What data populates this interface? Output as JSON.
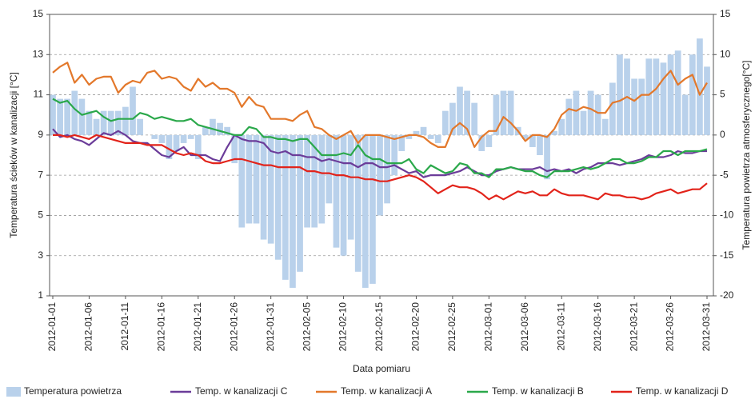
{
  "chart_data": {
    "type": "bar-line",
    "y_label": "Temperatura ścieków w kanalizacji [°C]",
    "y2_label": "Temperatura powietrza atmosferycznego[°C]",
    "x_label": "Data pomiaru",
    "categories": [
      "2012-01-01",
      null,
      null,
      null,
      null,
      "2012-01-06",
      null,
      null,
      null,
      null,
      "2012-01-11",
      null,
      null,
      null,
      null,
      "2012-01-16",
      null,
      null,
      null,
      null,
      "2012-01-21",
      null,
      null,
      null,
      null,
      "2012-01-26",
      null,
      null,
      null,
      null,
      "2012-01-31",
      null,
      null,
      null,
      null,
      "2012-02-05",
      null,
      null,
      null,
      null,
      "2012-02-10",
      null,
      null,
      null,
      null,
      "2012-02-15",
      null,
      null,
      null,
      null,
      "2012-02-20",
      null,
      null,
      null,
      null,
      "2012-02-25",
      null,
      null,
      null,
      null,
      "2012-03-01",
      null,
      null,
      null,
      null,
      "2012-03-06",
      null,
      null,
      null,
      null,
      "2012-03-11",
      null,
      null,
      null,
      null,
      "2012-03-16",
      null,
      null,
      null,
      null,
      "2012-03-21",
      null,
      null,
      null,
      null,
      "2012-03-26",
      null,
      null,
      null,
      null,
      "2012-03-31"
    ],
    "ylim": [
      1,
      15
    ],
    "yticks": [
      1,
      3,
      5,
      7,
      9,
      11,
      13,
      15
    ],
    "y2lim": [
      -20,
      15
    ],
    "y2ticks": [
      -20,
      -15,
      -10,
      -5,
      0,
      5,
      10,
      15
    ],
    "grid": true,
    "series": [
      {
        "name": "Temperatura powietrza",
        "kind": "bar",
        "axis": "y2",
        "color": "#b9d1eb",
        "values": [
          5,
          4.5,
          4.5,
          5.5,
          4.5,
          3,
          2,
          3,
          3,
          3,
          3.5,
          6,
          2,
          0,
          -0.5,
          -1,
          -3,
          -2,
          -1,
          -0.5,
          -3,
          1,
          2,
          1.5,
          1,
          -3.5,
          -11.5,
          -11,
          -11,
          -13,
          -13.5,
          -15.5,
          -18,
          -19,
          -17,
          -11.5,
          -11.5,
          -11,
          -8.5,
          -14,
          -15,
          -13,
          -17,
          -19,
          -18.5,
          -10,
          -8.5,
          -5,
          -2,
          -0.5,
          0.5,
          1,
          -0.5,
          -1,
          3,
          4,
          6,
          5.5,
          4,
          -2,
          -1.5,
          5,
          5.5,
          5.5,
          1,
          -0.5,
          -1.5,
          -2.5,
          -5.5,
          0.5,
          2,
          4.5,
          5.5,
          3,
          5.5,
          5,
          2,
          6.5,
          10,
          9.5,
          7,
          7,
          9.5,
          9.5,
          9,
          10,
          10.5,
          5,
          10,
          12,
          8.5
        ]
      },
      {
        "name": "Temp. w kanalizacji C",
        "kind": "line",
        "color": "#6b3c99",
        "values": [
          9.3,
          8.9,
          9.0,
          8.8,
          8.7,
          8.5,
          8.8,
          9.1,
          9.0,
          9.2,
          9.0,
          8.7,
          8.6,
          8.6,
          8.3,
          8.0,
          7.9,
          8.2,
          8.4,
          8.0,
          8.0,
          8.0,
          7.8,
          7.7,
          8.4,
          9.0,
          8.8,
          8.7,
          8.7,
          8.6,
          8.2,
          8.1,
          8.2,
          8.0,
          8.0,
          7.9,
          7.9,
          7.7,
          7.8,
          7.7,
          7.6,
          7.6,
          7.4,
          7.6,
          7.6,
          7.4,
          7.4,
          7.5,
          7.3,
          7.1,
          7.2,
          6.9,
          7.0,
          7.0,
          7.0,
          7.1,
          7.2,
          7.4,
          7.2,
          7.0,
          7.0,
          7.2,
          7.3,
          7.4,
          7.3,
          7.3,
          7.3,
          7.4,
          7.2,
          7.3,
          7.2,
          7.3,
          7.1,
          7.3,
          7.4,
          7.6,
          7.6,
          7.6,
          7.5,
          7.6,
          7.7,
          7.8,
          8.0,
          7.9,
          7.9,
          8.0,
          8.2,
          8.1,
          8.1,
          8.2,
          8.2
        ]
      },
      {
        "name": "Temp. w kanalizacji A",
        "kind": "line",
        "color": "#e3782b",
        "values": [
          12.1,
          12.4,
          12.6,
          11.6,
          12.0,
          11.5,
          11.8,
          11.9,
          11.9,
          11.1,
          11.5,
          11.7,
          11.6,
          12.1,
          12.2,
          11.8,
          11.9,
          11.8,
          11.4,
          11.2,
          11.8,
          11.4,
          11.6,
          11.3,
          11.3,
          11.1,
          10.4,
          10.9,
          10.5,
          10.4,
          9.8,
          9.8,
          9.8,
          9.7,
          10.0,
          10.2,
          9.4,
          9.3,
          9.0,
          8.8,
          9.0,
          9.2,
          8.6,
          9.0,
          9.0,
          9.0,
          8.9,
          8.8,
          8.9,
          9.0,
          9.0,
          8.9,
          8.6,
          8.4,
          8.4,
          9.3,
          9.6,
          9.3,
          8.4,
          8.9,
          9.2,
          9.2,
          9.9,
          9.6,
          9.2,
          8.7,
          9.0,
          9.0,
          8.9,
          9.3,
          10.0,
          10.3,
          10.2,
          10.4,
          10.3,
          10.1,
          10.1,
          10.6,
          10.7,
          10.9,
          10.7,
          11.0,
          11.0,
          11.3,
          11.8,
          12.2,
          11.5,
          11.8,
          12.0,
          11.0,
          11.6
        ]
      },
      {
        "name": "Temp. w kanalizacji B",
        "kind": "line",
        "color": "#2aa84a",
        "values": [
          10.8,
          10.6,
          10.7,
          10.3,
          10.0,
          10.1,
          10.2,
          9.9,
          9.7,
          9.8,
          9.8,
          9.8,
          10.1,
          10.0,
          9.8,
          9.9,
          9.8,
          9.7,
          9.7,
          9.8,
          9.5,
          9.4,
          9.3,
          9.2,
          9.1,
          9.0,
          9.0,
          9.4,
          9.3,
          8.9,
          8.9,
          8.8,
          8.8,
          8.7,
          8.8,
          8.8,
          8.4,
          8.0,
          8.0,
          8.0,
          8.1,
          8.0,
          8.5,
          8.0,
          7.8,
          7.8,
          7.6,
          7.6,
          7.6,
          7.8,
          7.3,
          7.1,
          7.5,
          7.3,
          7.1,
          7.2,
          7.6,
          7.5,
          7.1,
          7.1,
          6.9,
          7.3,
          7.3,
          7.4,
          7.3,
          7.2,
          7.2,
          7.0,
          6.9,
          7.2,
          7.2,
          7.2,
          7.3,
          7.4,
          7.3,
          7.4,
          7.6,
          7.8,
          7.8,
          7.6,
          7.6,
          7.7,
          7.9,
          7.9,
          8.2,
          8.2,
          8.0,
          8.2,
          8.2,
          8.2,
          8.3
        ]
      },
      {
        "name": "Temp. w kanalizacji D",
        "kind": "line",
        "color": "#e2231a",
        "values": [
          9.0,
          9.0,
          8.9,
          9.0,
          8.9,
          8.8,
          9.0,
          8.9,
          8.8,
          8.7,
          8.6,
          8.6,
          8.6,
          8.5,
          8.5,
          8.5,
          8.3,
          8.1,
          8.0,
          8.1,
          8.0,
          7.7,
          7.6,
          7.6,
          7.7,
          7.8,
          7.8,
          7.7,
          7.6,
          7.5,
          7.5,
          7.4,
          7.4,
          7.4,
          7.4,
          7.2,
          7.2,
          7.1,
          7.1,
          7.0,
          7.0,
          6.9,
          6.9,
          6.8,
          6.8,
          6.7,
          6.7,
          6.8,
          6.9,
          7.0,
          6.9,
          6.7,
          6.4,
          6.1,
          6.3,
          6.5,
          6.4,
          6.4,
          6.3,
          6.1,
          5.8,
          6.0,
          5.8,
          6.0,
          6.2,
          6.1,
          6.2,
          6.0,
          6.0,
          6.3,
          6.1,
          6.0,
          6.0,
          6.0,
          5.9,
          5.8,
          6.1,
          6.0,
          6.0,
          5.9,
          5.9,
          5.8,
          5.9,
          6.1,
          6.2,
          6.3,
          6.1,
          6.2,
          6.3,
          6.3,
          6.6
        ]
      }
    ]
  }
}
